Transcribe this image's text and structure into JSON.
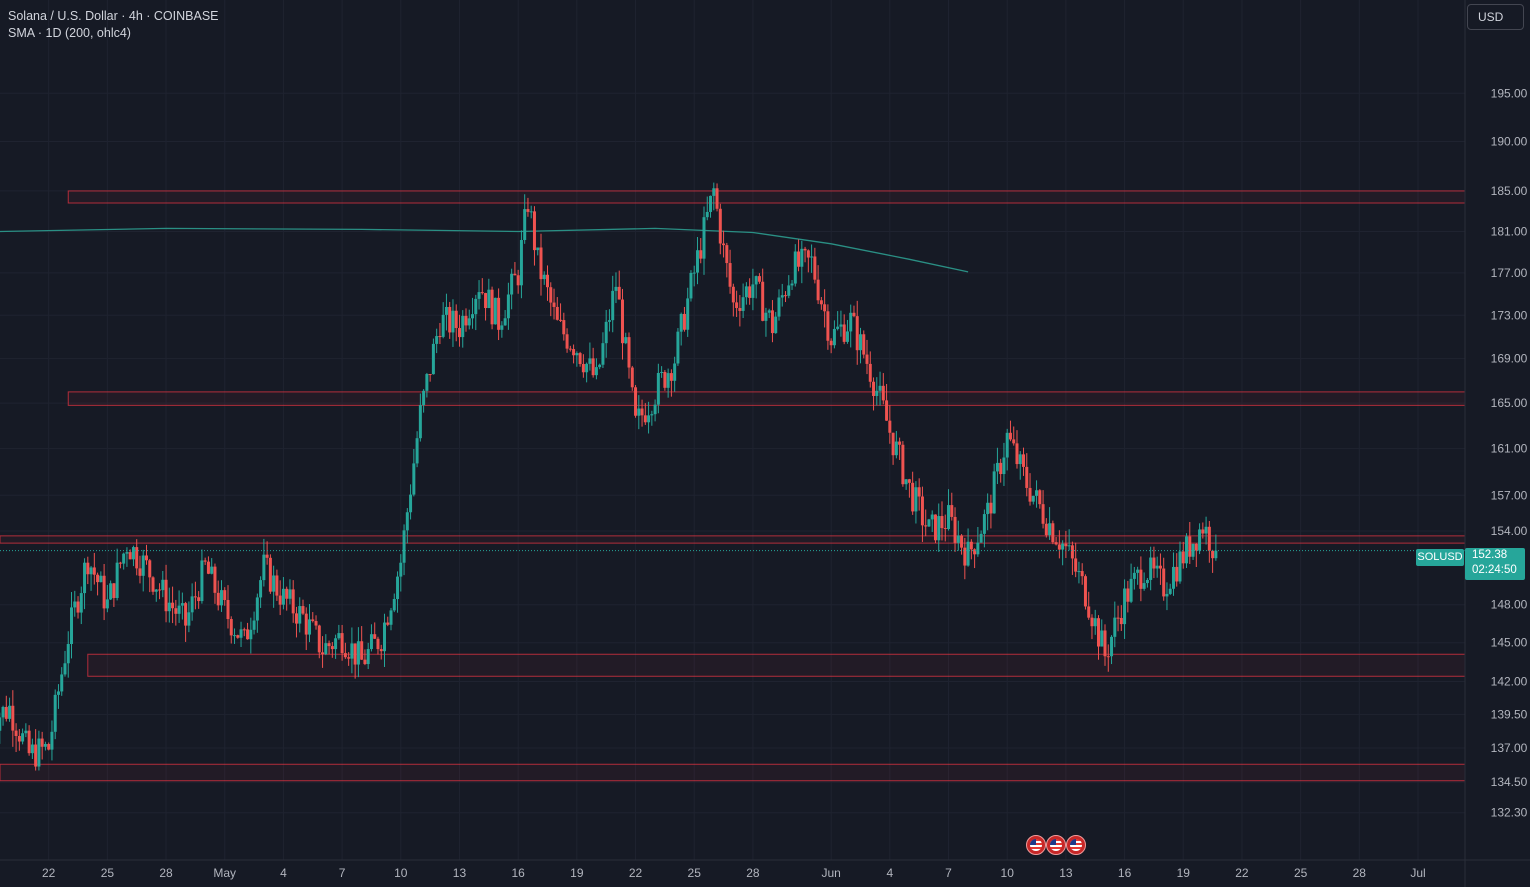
{
  "header": {
    "symbol_title": "Solana / U.S. Dollar · 4h · COINBASE",
    "indicator": "SMA · 1D (200, ohlc4)"
  },
  "currency_button": "USD",
  "last_price": {
    "symbol": "SOLUSD",
    "price": "152.38",
    "countdown": "02:24:50"
  },
  "colors": {
    "background": "#161a25",
    "grid": "#1f2330",
    "up": "#26a69a",
    "down": "#ef5350",
    "zone": "#f23645",
    "sma": "#2a8f84"
  },
  "icons": [
    "us-flag-icon",
    "us-flag-icon",
    "us-flag-icon"
  ],
  "chart_data": {
    "type": "candlestick",
    "title": "Solana / U.S. Dollar · 4h · COINBASE",
    "x_axis_ticks": [
      "22",
      "25",
      "28",
      "May",
      "4",
      "7",
      "10",
      "13",
      "16",
      "19",
      "22",
      "25",
      "28",
      "Jun",
      "4",
      "7",
      "10",
      "13",
      "16",
      "19",
      "22",
      "25",
      "28",
      "Jul"
    ],
    "y_axis_ticks": [
      "195.00",
      "190.00",
      "185.00",
      "181.00",
      "177.00",
      "173.00",
      "169.00",
      "165.00",
      "161.00",
      "157.00",
      "154.00",
      "148.00",
      "145.00",
      "142.00",
      "139.50",
      "137.00",
      "134.50",
      "132.30"
    ],
    "y_axis_scale": "log",
    "y_range": [
      131.0,
      198.0
    ],
    "x_range": [
      "2024-04-19",
      "2024-07-01"
    ],
    "last_price": 152.38,
    "horizontal_zones": [
      {
        "start": "2024-04-23",
        "top": 185.0,
        "bottom": 183.8
      },
      {
        "start": "2024-04-23",
        "top": 166.0,
        "bottom": 164.8
      },
      {
        "start": "2024-04-19",
        "top": 153.6,
        "bottom": 153.0
      },
      {
        "start": "2024-04-24",
        "top": 144.1,
        "bottom": 142.4
      },
      {
        "start": "2024-04-19",
        "top": 135.8,
        "bottom": 134.6
      }
    ],
    "sma_200_1d": [
      {
        "date": "2024-04-19",
        "value": 181.0
      },
      {
        "date": "2024-04-28",
        "value": 181.3
      },
      {
        "date": "2024-05-08",
        "value": 181.2
      },
      {
        "date": "2024-05-16",
        "value": 181.0
      },
      {
        "date": "2024-05-23",
        "value": 181.3
      },
      {
        "date": "2024-05-28",
        "value": 180.9
      },
      {
        "date": "2024-06-01",
        "value": 179.8
      },
      {
        "date": "2024-06-05",
        "value": 178.3
      },
      {
        "date": "2024-06-08",
        "value": 177.1
      }
    ],
    "price_path_4h": [
      {
        "date": "2024-04-19",
        "close": 139.0
      },
      {
        "date": "2024-04-20",
        "close": 140.0
      },
      {
        "date": "2024-04-21",
        "close": 136.5
      },
      {
        "date": "2024-04-22",
        "close": 137.0
      },
      {
        "date": "2024-04-23",
        "close": 145.5
      },
      {
        "date": "2024-04-24",
        "close": 151.8
      },
      {
        "date": "2024-04-25",
        "close": 148.0
      },
      {
        "date": "2024-04-26",
        "close": 153.0
      },
      {
        "date": "2024-04-27",
        "close": 151.0
      },
      {
        "date": "2024-04-28",
        "close": 148.5
      },
      {
        "date": "2024-04-29",
        "close": 146.5
      },
      {
        "date": "2024-04-30",
        "close": 151.0
      },
      {
        "date": "2024-05-01",
        "close": 147.5
      },
      {
        "date": "2024-05-02",
        "close": 145.0
      },
      {
        "date": "2024-05-03",
        "close": 151.0
      },
      {
        "date": "2024-05-04",
        "close": 148.5
      },
      {
        "date": "2024-05-05",
        "close": 147.0
      },
      {
        "date": "2024-05-06",
        "close": 144.5
      },
      {
        "date": "2024-05-07",
        "close": 145.5
      },
      {
        "date": "2024-05-08",
        "close": 143.5
      },
      {
        "date": "2024-05-09",
        "close": 145.5
      },
      {
        "date": "2024-05-10",
        "close": 151.5
      },
      {
        "date": "2024-05-11",
        "close": 164.0
      },
      {
        "date": "2024-05-12",
        "close": 172.5
      },
      {
        "date": "2024-05-13",
        "close": 172.0
      },
      {
        "date": "2024-05-14",
        "close": 176.0
      },
      {
        "date": "2024-05-15",
        "close": 172.5
      },
      {
        "date": "2024-05-16",
        "close": 177.0
      },
      {
        "date": "2024-05-16T12",
        "close": 184.0
      },
      {
        "date": "2024-05-17",
        "close": 178.0
      },
      {
        "date": "2024-05-18",
        "close": 172.0
      },
      {
        "date": "2024-05-19",
        "close": 170.0
      },
      {
        "date": "2024-05-20",
        "close": 167.0
      },
      {
        "date": "2024-05-21",
        "close": 176.0
      },
      {
        "date": "2024-05-22",
        "close": 163.0
      },
      {
        "date": "2024-05-23",
        "close": 166.0
      },
      {
        "date": "2024-05-24",
        "close": 169.0
      },
      {
        "date": "2024-05-25",
        "close": 177.0
      },
      {
        "date": "2024-05-26",
        "close": 185.0
      },
      {
        "date": "2024-05-26T12",
        "close": 179.0
      },
      {
        "date": "2024-05-27",
        "close": 174.0
      },
      {
        "date": "2024-05-28",
        "close": 176.0
      },
      {
        "date": "2024-05-29",
        "close": 172.0
      },
      {
        "date": "2024-05-30",
        "close": 177.5
      },
      {
        "date": "2024-05-31",
        "close": 178.0
      },
      {
        "date": "2024-06-01",
        "close": 171.0
      },
      {
        "date": "2024-06-02",
        "close": 172.5
      },
      {
        "date": "2024-06-03",
        "close": 168.0
      },
      {
        "date": "2024-06-04",
        "close": 162.5
      },
      {
        "date": "2024-06-05",
        "close": 157.5
      },
      {
        "date": "2024-06-06",
        "close": 154.0
      },
      {
        "date": "2024-06-07",
        "close": 155.0
      },
      {
        "date": "2024-06-08",
        "close": 152.0
      },
      {
        "date": "2024-06-09",
        "close": 155.5
      },
      {
        "date": "2024-06-10",
        "close": 162.0
      },
      {
        "date": "2024-06-11",
        "close": 158.0
      },
      {
        "date": "2024-06-12",
        "close": 155.0
      },
      {
        "date": "2024-06-13",
        "close": 152.5
      },
      {
        "date": "2024-06-14",
        "close": 149.0
      },
      {
        "date": "2024-06-15",
        "close": 144.0
      },
      {
        "date": "2024-06-16",
        "close": 148.5
      },
      {
        "date": "2024-06-17",
        "close": 151.0
      },
      {
        "date": "2024-06-18",
        "close": 149.5
      },
      {
        "date": "2024-06-19",
        "close": 152.0
      },
      {
        "date": "2024-06-20",
        "close": 154.5
      },
      {
        "date": "2024-06-20T16",
        "close": 152.38
      }
    ]
  }
}
